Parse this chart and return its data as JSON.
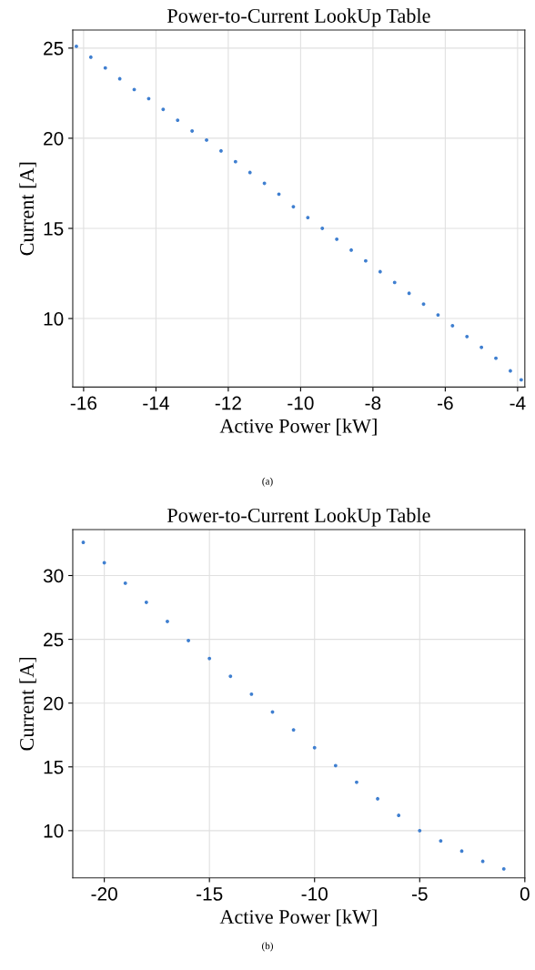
{
  "chart_data": [
    {
      "type": "scatter",
      "title": "Power-to-Current LookUp Table",
      "xlabel": "Active Power [kW]",
      "ylabel": "Current [A]",
      "annotations": [
        "(a)"
      ],
      "x": [
        -16.2,
        -15.8,
        -15.4,
        -15,
        -14.6,
        -14.2,
        -13.8,
        -13.4,
        -13,
        -12.6,
        -12.2,
        -11.8,
        -11.4,
        -11,
        -10.6,
        -10.2,
        -9.8,
        -9.4,
        -9,
        -8.6,
        -8.2,
        -7.8,
        -7.4,
        -7,
        -6.6,
        -6.2,
        -5.8,
        -5.4,
        -5,
        -4.6,
        -4.2,
        -3.9
      ],
      "series": [
        {
          "color": "#3f7fd0",
          "values": [
            25.1,
            24.5,
            23.9,
            23.3,
            22.7,
            22.2,
            21.6,
            21.0,
            20.4,
            19.9,
            19.3,
            18.7,
            18.1,
            17.5,
            16.9,
            16.2,
            15.6,
            15.0,
            14.4,
            13.8,
            13.2,
            12.6,
            12.0,
            11.4,
            10.8,
            10.2,
            9.6,
            9.0,
            8.4,
            7.8,
            7.1,
            6.6
          ]
        }
      ],
      "xlim": [
        -16.3,
        -3.8
      ],
      "ylim": [
        6.2,
        26
      ],
      "xticks": [
        -16,
        -14,
        -12,
        -10,
        -8,
        -6,
        -4
      ],
      "yticks": [
        10,
        15,
        20,
        25
      ],
      "grid": true,
      "marker": "circle"
    },
    {
      "type": "scatter",
      "title": "Power-to-Current LookUp Table",
      "xlabel": "Active Power [kW]",
      "ylabel": "Current [A]",
      "annotations": [
        "(b)"
      ],
      "x": [
        -21,
        -20,
        -19,
        -18,
        -17,
        -16,
        -15,
        -14,
        -13,
        -12,
        -11,
        -10,
        -9,
        -8,
        -7,
        -6,
        -5,
        -4,
        -3,
        -2,
        -1
      ],
      "series": [
        {
          "color": "#3f7fd0",
          "values": [
            32.6,
            31.0,
            29.4,
            27.9,
            26.4,
            24.9,
            23.5,
            22.1,
            20.7,
            19.3,
            17.9,
            16.5,
            15.1,
            13.8,
            12.5,
            11.2,
            10.0,
            9.2,
            8.4,
            7.6,
            7.0
          ]
        }
      ],
      "xlim": [
        -21.5,
        0
      ],
      "ylim": [
        6.3,
        33.6
      ],
      "xticks": [
        -20,
        -15,
        -10,
        -5,
        0
      ],
      "yticks": [
        10,
        15,
        20,
        25,
        30
      ],
      "grid": true,
      "marker": "circle"
    }
  ]
}
